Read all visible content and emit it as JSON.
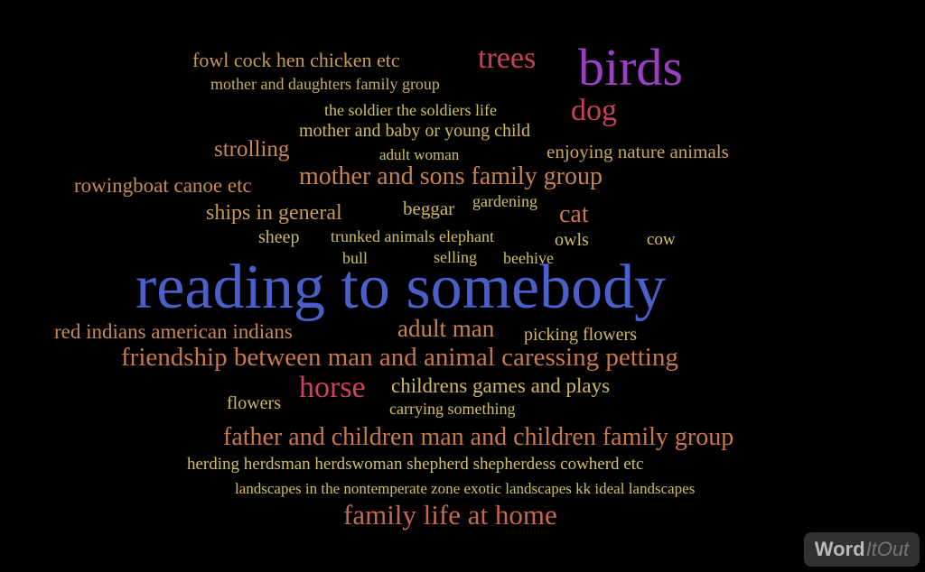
{
  "cloud": {
    "words": [
      {
        "text": "reading to somebody",
        "color": "#4a5fc8"
      },
      {
        "text": "birds",
        "color": "#9a3fc0"
      },
      {
        "text": "trees",
        "color": "#c8405a"
      },
      {
        "text": "dog",
        "color": "#c8405a"
      },
      {
        "text": "horse",
        "color": "#d04060"
      },
      {
        "text": "fowl cock hen chicken etc",
        "color": "#c89a55"
      },
      {
        "text": "mother and daughters family group",
        "color": "#c8b060"
      },
      {
        "text": "the soldier the soldiers life",
        "color": "#d0c060"
      },
      {
        "text": "mother and baby or young child",
        "color": "#d0b860"
      },
      {
        "text": "strolling",
        "color": "#c88a50"
      },
      {
        "text": "adult woman",
        "color": "#d0c060"
      },
      {
        "text": "enjoying nature animals",
        "color": "#c8a858"
      },
      {
        "text": "rowingboat canoe etc",
        "color": "#c88a50"
      },
      {
        "text": "mother and sons family group",
        "color": "#c8844e"
      },
      {
        "text": "ships in general",
        "color": "#c89a55"
      },
      {
        "text": "beggar",
        "color": "#d0b860"
      },
      {
        "text": "gardening",
        "color": "#d0c060"
      },
      {
        "text": "cat",
        "color": "#c8784a"
      },
      {
        "text": "sheep",
        "color": "#d0b860"
      },
      {
        "text": "trunked animals elephant",
        "color": "#d0c060"
      },
      {
        "text": "owls",
        "color": "#d0c060"
      },
      {
        "text": "cow",
        "color": "#d0c060"
      },
      {
        "text": "bull",
        "color": "#d0c060"
      },
      {
        "text": "selling",
        "color": "#d0c060"
      },
      {
        "text": "beehive",
        "color": "#d0c060"
      },
      {
        "text": "red indians american indians",
        "color": "#c88a50"
      },
      {
        "text": "adult man",
        "color": "#c8844e"
      },
      {
        "text": "picking flowers",
        "color": "#d0b860"
      },
      {
        "text": "friendship between man and animal caressing petting",
        "color": "#c8784a"
      },
      {
        "text": "flowers",
        "color": "#d0b860"
      },
      {
        "text": "childrens games and plays",
        "color": "#d0b860"
      },
      {
        "text": "carrying something",
        "color": "#d0c060"
      },
      {
        "text": "father and children man and children family group",
        "color": "#c8784a"
      },
      {
        "text": "herding herdsman herdswoman shepherd shepherdess cowherd etc",
        "color": "#d0c060"
      },
      {
        "text": "landscapes in the nontemperate zone exotic landscapes kk ideal landscapes",
        "color": "#d0c060"
      },
      {
        "text": "family life at home",
        "color": "#c86848"
      }
    ]
  },
  "logo": {
    "part1": "Word",
    "part2": "ItOut"
  }
}
